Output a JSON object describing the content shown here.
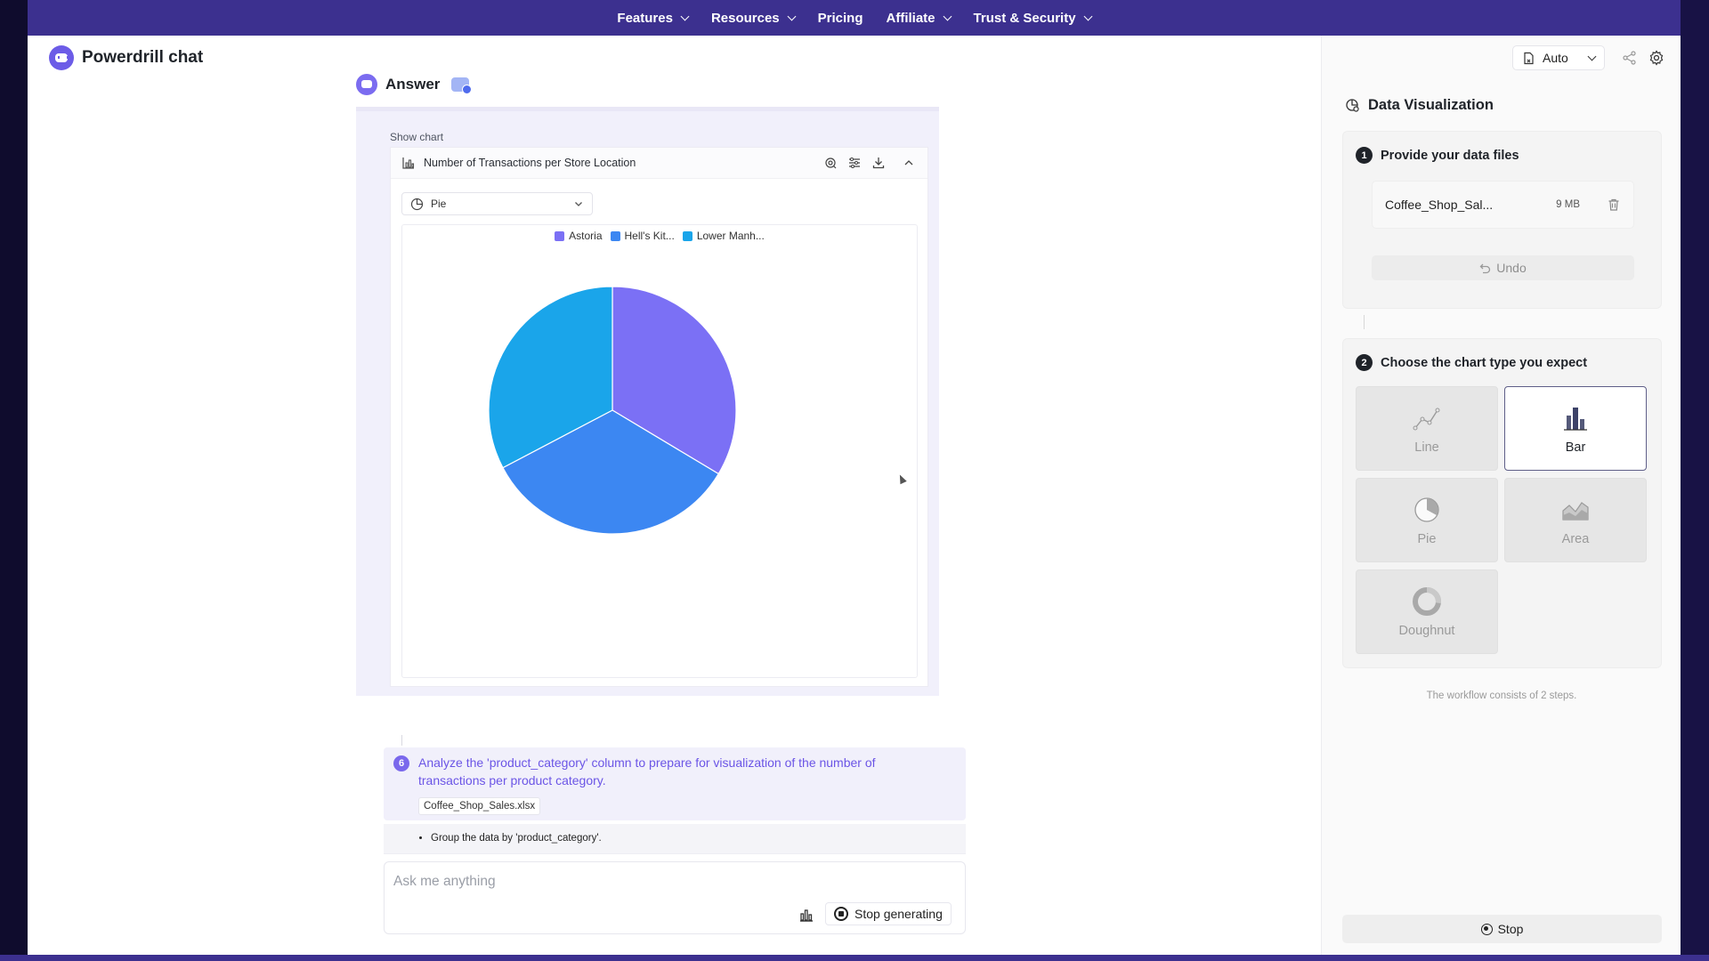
{
  "nav": {
    "items": [
      {
        "label": "Features",
        "has_dropdown": true
      },
      {
        "label": "Resources",
        "has_dropdown": true
      },
      {
        "label": "Pricing",
        "has_dropdown": false
      },
      {
        "label": "Affiliate",
        "has_dropdown": true
      },
      {
        "label": "Trust & Security",
        "has_dropdown": true
      }
    ],
    "bg_color": "#3c308f"
  },
  "app": {
    "title": "Powerdrill chat"
  },
  "answer": {
    "label": "Answer",
    "show_chart_label": "Show chart",
    "chart": {
      "title": "Number of Transactions per Store Location",
      "type_select": "Pie"
    }
  },
  "chart_data": {
    "type": "pie",
    "title": "Number of Transactions per Store Location",
    "categories": [
      "Astoria",
      "Hell's Kit...",
      "Lower Manh..."
    ],
    "values": [
      33.6,
      33.7,
      32.7
    ],
    "colors": [
      "#7b70f5",
      "#3c87f2",
      "#1aa5ea"
    ],
    "legend_position": "top-center"
  },
  "step6": {
    "number": "6",
    "text": "Analyze the 'product_category' column to prepare for visualization of the number of transactions per product category.",
    "file": "Coffee_Shop_Sales.xlsx",
    "bullet": "Group the data by 'product_category'."
  },
  "input": {
    "placeholder": "Ask me anything",
    "stop_label": "Stop generating"
  },
  "right": {
    "auto_label": "Auto",
    "title": "Data Visualization",
    "step1": {
      "number": "1",
      "label": "Provide your data files",
      "file_name": "Coffee_Shop_Sal...",
      "file_size": "9 MB",
      "undo_label": "Undo"
    },
    "step2": {
      "number": "2",
      "label": "Choose the chart type you expect",
      "types": [
        {
          "label": "Line",
          "selected": false
        },
        {
          "label": "Bar",
          "selected": true
        },
        {
          "label": "Pie",
          "selected": false
        },
        {
          "label": "Area",
          "selected": false
        },
        {
          "label": "Doughnut",
          "selected": false
        }
      ]
    },
    "workflow_note": "The workflow consists of 2 steps.",
    "stop_label": "Stop"
  }
}
